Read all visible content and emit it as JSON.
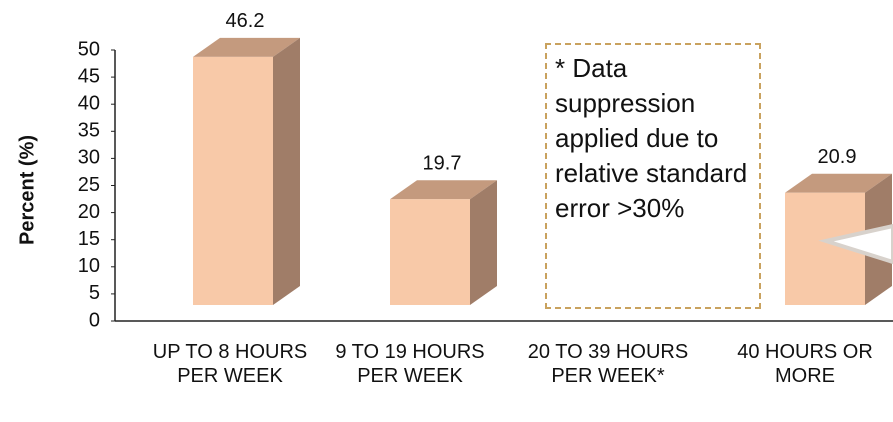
{
  "chart_data": {
    "type": "bar3d",
    "y_label": "Percent (%)",
    "categories": [
      "UP TO 8 HOURS PER WEEK",
      "9 TO 19 HOURS PER WEEK",
      "20 TO 39 HOURS PER WEEK*",
      "40 HOURS OR MORE"
    ],
    "values": [
      46.2,
      19.7,
      null,
      20.9
    ],
    "color": "#f8c9a8",
    "ylim": [
      0,
      50
    ],
    "yticks": [
      0,
      5,
      10,
      15,
      20,
      25,
      30,
      35,
      40,
      45,
      50
    ],
    "annotation": "* Data suppression applied due to relative standard error >30%"
  }
}
